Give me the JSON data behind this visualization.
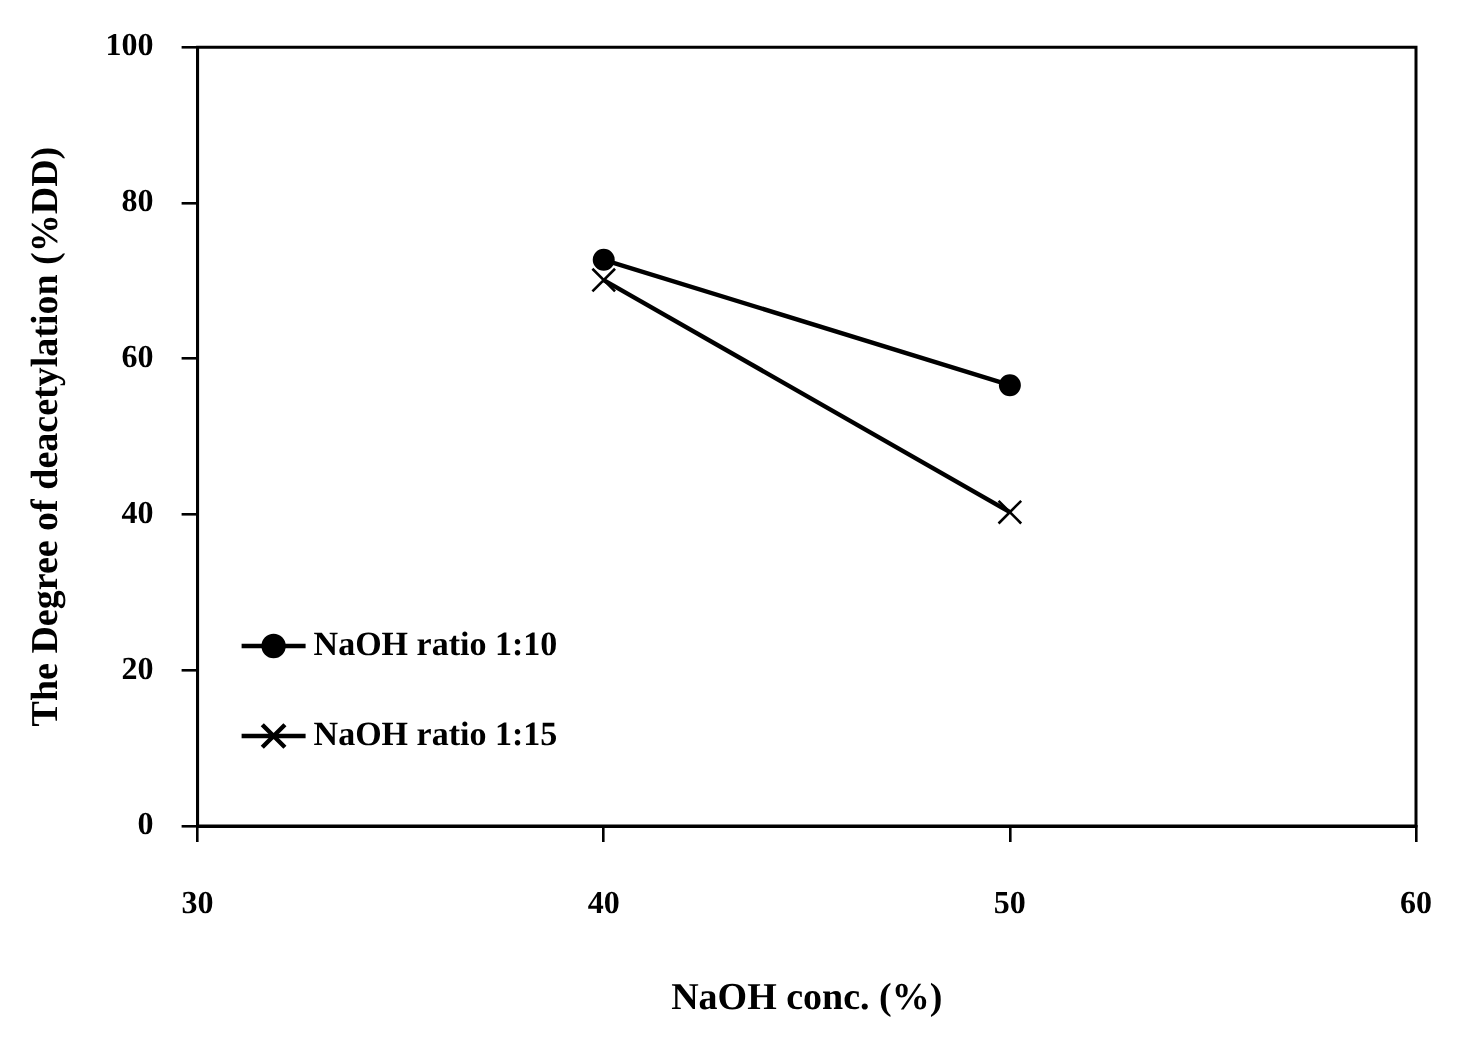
{
  "chart_data": {
    "type": "line",
    "xlabel": "NaOH conc. (%)",
    "ylabel": "The Degree of deacetylation (%DD)",
    "x": [
      40,
      50
    ],
    "series": [
      {
        "name": "NaOH ratio 1:10",
        "color": "#000000",
        "values": [
          72.7,
          56.6
        ],
        "marker": "circle"
      },
      {
        "name": "NaOH ratio 1:15",
        "color": "#000000",
        "values": [
          70.1,
          40.3
        ],
        "marker": "cross"
      }
    ],
    "xlim": [
      30,
      60
    ],
    "xticks": [
      30,
      40,
      50,
      60
    ],
    "ylim": [
      0,
      100
    ],
    "yticks": [
      0,
      20,
      40,
      60,
      80,
      100
    ],
    "grid": false,
    "legend": "bottom left",
    "line_style": "solid"
  }
}
